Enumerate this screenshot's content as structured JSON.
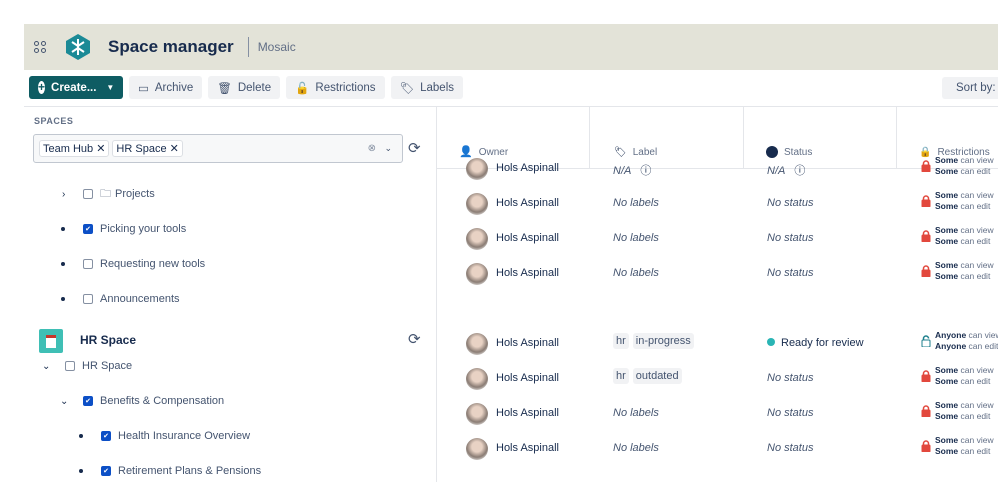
{
  "header": {
    "title": "Space manager",
    "subtitle": "Mosaic"
  },
  "toolbar": {
    "create": "Create...",
    "archive": "Archive",
    "delete": "Delete",
    "restrictions": "Restrictions",
    "labels": "Labels",
    "sort": "Sort by: Name"
  },
  "spaces": {
    "label": "SPACES",
    "chips": [
      "Team Hub",
      "HR Space"
    ]
  },
  "tree": [
    {
      "label": "Projects",
      "checked": false,
      "type": "chevron-right",
      "folder": true
    },
    {
      "label": "Picking your tools",
      "checked": true,
      "type": "bullet"
    },
    {
      "label": "Requesting new tools",
      "checked": false,
      "type": "bullet"
    },
    {
      "label": "Announcements",
      "checked": false,
      "type": "bullet"
    }
  ],
  "space2": {
    "title": "HR Space"
  },
  "tree2": [
    {
      "label": "HR Space",
      "checked": false,
      "type": "chevron-down",
      "indent": 0
    },
    {
      "label": "Benefits & Compensation",
      "checked": true,
      "type": "chevron-down",
      "indent": 1
    },
    {
      "label": "Health Insurance Overview",
      "checked": true,
      "type": "bullet",
      "indent": 2
    },
    {
      "label": "Retirement Plans & Pensions",
      "checked": true,
      "type": "bullet",
      "indent": 2
    }
  ],
  "columns": [
    "Owner",
    "Label",
    "Status",
    "Restrictions"
  ],
  "rows": [
    {
      "owner": "Hols Aspinall",
      "label": "N/A",
      "labels": [],
      "status": "N/A",
      "info": true,
      "view": "Some",
      "edit": "Some",
      "locked": true
    },
    {
      "owner": "Hols Aspinall",
      "label": "No labels",
      "labels": [],
      "status": "No status",
      "view": "Some",
      "edit": "Some",
      "locked": true
    },
    {
      "owner": "Hols Aspinall",
      "label": "No labels",
      "labels": [],
      "status": "No status",
      "view": "Some",
      "edit": "Some",
      "locked": true
    },
    {
      "owner": "Hols Aspinall",
      "label": "No labels",
      "labels": [],
      "status": "No status",
      "view": "Some",
      "edit": "Some",
      "locked": true
    },
    {
      "owner": "Hols Aspinall",
      "label": "",
      "labels": [
        "hr",
        "in-progress"
      ],
      "status": "Ready for review",
      "statusColor": "#2ab5b5",
      "view": "Anyone",
      "edit": "Anyone",
      "locked": false
    },
    {
      "owner": "Hols Aspinall",
      "label": "",
      "labels": [
        "hr",
        "outdated"
      ],
      "status": "No status",
      "view": "Some",
      "edit": "Some",
      "locked": true
    },
    {
      "owner": "Hols Aspinall",
      "label": "No labels",
      "labels": [],
      "status": "No status",
      "view": "Some",
      "edit": "Some",
      "locked": true
    },
    {
      "owner": "Hols Aspinall",
      "label": "No labels",
      "labels": [],
      "status": "No status",
      "view": "Some",
      "edit": "Some",
      "locked": true
    }
  ],
  "restriction_text": {
    "view": "can view",
    "edit": "can edit"
  },
  "colors": {
    "header": "#e3e3d8",
    "primary": "#0e5c63",
    "checkbox": "#0c4fc6",
    "locked": "#e2483d",
    "unlocked": "#1d7f8c"
  }
}
